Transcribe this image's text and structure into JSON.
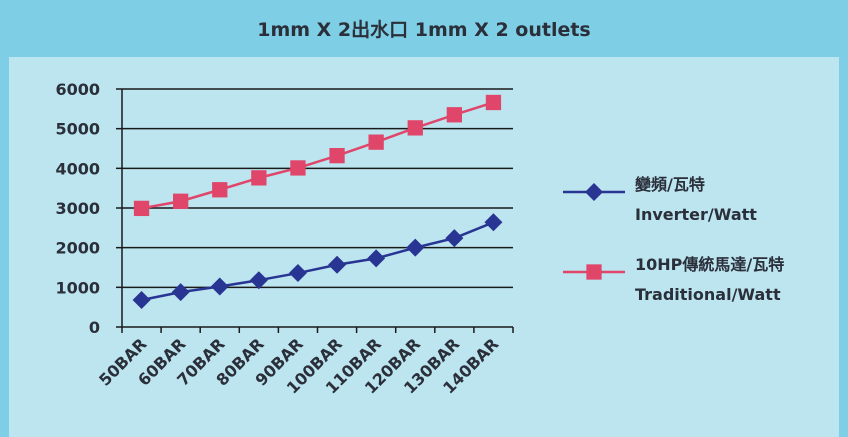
{
  "header": {
    "title": "1mm X 2出水口 1mm X 2 outlets"
  },
  "colors": {
    "inverter": "#283593",
    "traditional": "#e0466a",
    "axis": "#1a1a1a",
    "header_bg": "#7ecfe5",
    "plot_bg": "#bce5f0"
  },
  "chart_data": {
    "type": "line",
    "title": "1mm X 2出水口 1mm X 2 outlets",
    "categories": [
      "50BAR",
      "60BAR",
      "70BAR",
      "80BAR",
      "90BAR",
      "100BAR",
      "110BAR",
      "120BAR",
      "130BAR",
      "140BAR"
    ],
    "y_ticks": [
      "0",
      "1000",
      "2000",
      "3000",
      "4000",
      "5000",
      "6000"
    ],
    "ylim": [
      0,
      6000
    ],
    "grid": true,
    "legend_position": "right",
    "series": [
      {
        "name_line1": "變頻/瓦特",
        "name_line2": "Inverter/Watt",
        "marker": "diamond",
        "color": "#283593",
        "values": [
          680,
          880,
          1020,
          1180,
          1360,
          1570,
          1730,
          2000,
          2240,
          2640
        ]
      },
      {
        "name_line1": "10HP傳統馬達/瓦特",
        "name_line2": "Traditional/Watt",
        "marker": "square",
        "color": "#e0466a",
        "values": [
          2990,
          3170,
          3460,
          3760,
          4010,
          4320,
          4660,
          5020,
          5350,
          5660
        ]
      }
    ]
  }
}
